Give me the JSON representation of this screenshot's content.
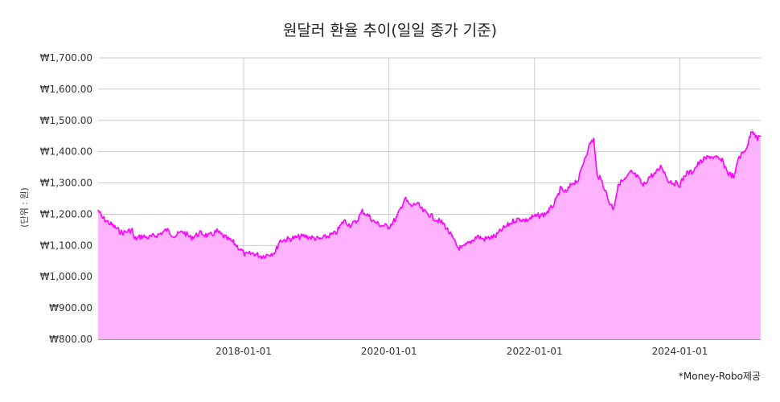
{
  "chart_data": {
    "type": "area",
    "title": "원달러 환율 추이(일일 종가 기준)",
    "ylabel": "(단위 : 원)",
    "xlabel": "",
    "footnote": "*Money-Robo제공",
    "ylim": [
      800,
      1700
    ],
    "xlim": [
      "2016-01-01",
      "2025-02-10"
    ],
    "grid": true,
    "legend": "none",
    "y_ticks": [
      {
        "value": 800,
        "label": "₩800.00"
      },
      {
        "value": 900,
        "label": "₩900.00"
      },
      {
        "value": 1000,
        "label": "₩1,000.00"
      },
      {
        "value": 1100,
        "label": "₩1,100.00"
      },
      {
        "value": 1200,
        "label": "₩1,200.00"
      },
      {
        "value": 1300,
        "label": "₩1,300.00"
      },
      {
        "value": 1400,
        "label": "₩1,400.00"
      },
      {
        "value": 1500,
        "label": "₩1,500.00"
      },
      {
        "value": 1600,
        "label": "₩1,600.00"
      },
      {
        "value": 1700,
        "label": "₩1,700.00"
      }
    ],
    "x_ticks": [
      {
        "value": "2018-01-01",
        "label": "2018-01-01"
      },
      {
        "value": "2020-01-01",
        "label": "2020-01-01"
      },
      {
        "value": "2022-01-01",
        "label": "2022-01-01"
      },
      {
        "value": "2024-01-01",
        "label": "2024-01-01"
      }
    ],
    "series": [
      {
        "color": "#ff00ff",
        "fill": "#ffb3ff",
        "points": [
          [
            "2016-01-01",
            1213
          ],
          [
            "2016-01-20",
            1190
          ],
          [
            "2016-03-01",
            1170
          ],
          [
            "2016-05-01",
            1140
          ],
          [
            "2016-06-20",
            1150
          ],
          [
            "2016-07-01",
            1120
          ],
          [
            "2016-08-10",
            1130
          ],
          [
            "2016-09-10",
            1125
          ],
          [
            "2016-11-01",
            1135
          ],
          [
            "2016-12-10",
            1150
          ],
          [
            "2017-01-20",
            1130
          ],
          [
            "2017-03-01",
            1145
          ],
          [
            "2017-04-10",
            1125
          ],
          [
            "2017-06-01",
            1140
          ],
          [
            "2017-07-10",
            1130
          ],
          [
            "2017-08-20",
            1145
          ],
          [
            "2017-10-01",
            1125
          ],
          [
            "2017-11-10",
            1110
          ],
          [
            "2017-12-20",
            1085
          ],
          [
            "2018-01-10",
            1070
          ],
          [
            "2018-02-20",
            1075
          ],
          [
            "2018-04-01",
            1065
          ],
          [
            "2018-05-20",
            1075
          ],
          [
            "2018-06-10",
            1080
          ],
          [
            "2018-06-30",
            1115
          ],
          [
            "2018-08-10",
            1120
          ],
          [
            "2018-09-20",
            1125
          ],
          [
            "2018-11-01",
            1130
          ],
          [
            "2018-12-10",
            1125
          ],
          [
            "2019-01-20",
            1120
          ],
          [
            "2019-03-01",
            1130
          ],
          [
            "2019-04-10",
            1140
          ],
          [
            "2019-05-20",
            1180
          ],
          [
            "2019-06-20",
            1165
          ],
          [
            "2019-07-20",
            1175
          ],
          [
            "2019-08-20",
            1210
          ],
          [
            "2019-09-20",
            1195
          ],
          [
            "2019-10-20",
            1175
          ],
          [
            "2019-11-20",
            1165
          ],
          [
            "2020-01-01",
            1160
          ],
          [
            "2020-02-10",
            1190
          ],
          [
            "2020-03-20",
            1250
          ],
          [
            "2020-04-20",
            1225
          ],
          [
            "2020-05-20",
            1235
          ],
          [
            "2020-06-20",
            1210
          ],
          [
            "2020-07-20",
            1200
          ],
          [
            "2020-08-20",
            1185
          ],
          [
            "2020-10-01",
            1170
          ],
          [
            "2020-11-10",
            1130
          ],
          [
            "2020-12-10",
            1095
          ],
          [
            "2021-01-01",
            1090
          ],
          [
            "2021-01-20",
            1100
          ],
          [
            "2021-02-20",
            1115
          ],
          [
            "2021-03-20",
            1130
          ],
          [
            "2021-04-20",
            1120
          ],
          [
            "2021-05-20",
            1125
          ],
          [
            "2021-06-20",
            1130
          ],
          [
            "2021-07-20",
            1150
          ],
          [
            "2021-08-20",
            1165
          ],
          [
            "2021-09-20",
            1180
          ],
          [
            "2021-10-20",
            1185
          ],
          [
            "2021-11-20",
            1180
          ],
          [
            "2021-12-20",
            1190
          ],
          [
            "2022-01-20",
            1195
          ],
          [
            "2022-02-20",
            1200
          ],
          [
            "2022-03-20",
            1215
          ],
          [
            "2022-04-20",
            1245
          ],
          [
            "2022-05-10",
            1280
          ],
          [
            "2022-06-10",
            1270
          ],
          [
            "2022-07-10",
            1300
          ],
          [
            "2022-08-10",
            1310
          ],
          [
            "2022-09-10",
            1380
          ],
          [
            "2022-10-10",
            1430
          ],
          [
            "2022-10-25",
            1440
          ],
          [
            "2022-11-10",
            1330
          ],
          [
            "2022-12-10",
            1300
          ],
          [
            "2023-01-10",
            1240
          ],
          [
            "2023-02-01",
            1220
          ],
          [
            "2023-03-01",
            1300
          ],
          [
            "2023-04-01",
            1310
          ],
          [
            "2023-05-01",
            1335
          ],
          [
            "2023-06-01",
            1320
          ],
          [
            "2023-07-01",
            1290
          ],
          [
            "2023-08-01",
            1320
          ],
          [
            "2023-09-01",
            1330
          ],
          [
            "2023-10-01",
            1355
          ],
          [
            "2023-11-01",
            1310
          ],
          [
            "2023-12-01",
            1300
          ],
          [
            "2024-01-01",
            1295
          ],
          [
            "2024-02-01",
            1330
          ],
          [
            "2024-03-01",
            1335
          ],
          [
            "2024-04-01",
            1360
          ],
          [
            "2024-05-01",
            1375
          ],
          [
            "2024-06-01",
            1385
          ],
          [
            "2024-07-01",
            1380
          ],
          [
            "2024-08-01",
            1370
          ],
          [
            "2024-09-01",
            1330
          ],
          [
            "2024-10-01",
            1320
          ],
          [
            "2024-10-20",
            1380
          ],
          [
            "2024-11-20",
            1400
          ],
          [
            "2024-12-10",
            1430
          ],
          [
            "2024-12-28",
            1470
          ],
          [
            "2025-01-10",
            1460
          ],
          [
            "2025-01-25",
            1440
          ],
          [
            "2025-02-10",
            1450
          ]
        ]
      }
    ]
  }
}
